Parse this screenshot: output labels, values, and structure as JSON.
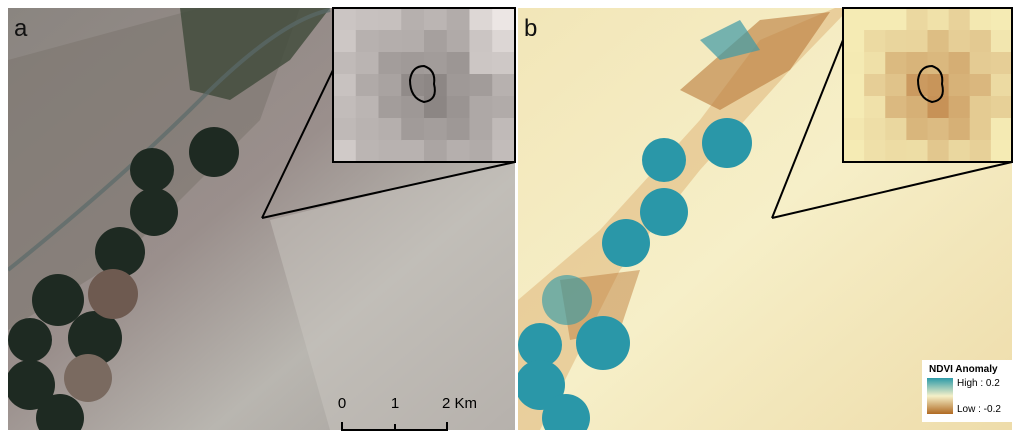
{
  "panels": [
    {
      "label": "a"
    },
    {
      "label": "b"
    }
  ],
  "scale_bar": {
    "labels": [
      "0",
      "1",
      "2 Km"
    ]
  },
  "legend": {
    "title": "NDVI Anomaly",
    "high": "High : 0.2",
    "low": "Low : -0.2"
  }
}
